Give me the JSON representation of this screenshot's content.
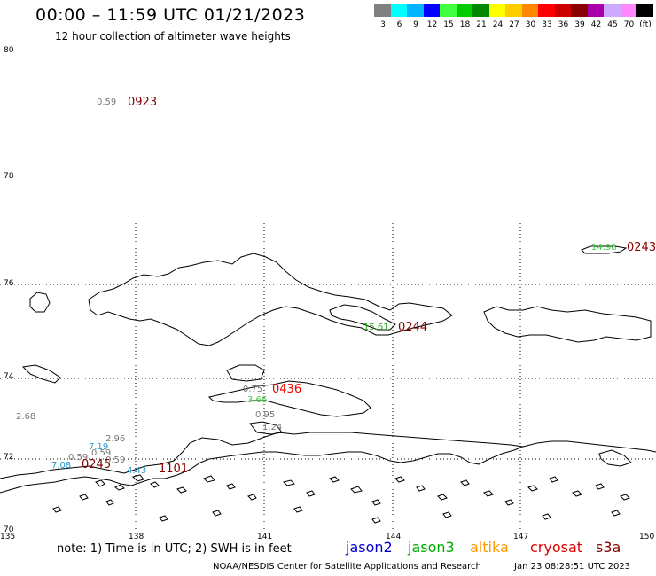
{
  "header": {
    "title": "00:00 – 11:59 UTC 01/21/2023",
    "subtitle": "12 hour collection of altimeter wave heights"
  },
  "colorbar": {
    "colors": [
      "#808080",
      "#00ffff",
      "#00b4ff",
      "#0000ff",
      "#40ff40",
      "#00cc00",
      "#008800",
      "#ffff00",
      "#ffcc00",
      "#ff8800",
      "#ff0000",
      "#cc0000",
      "#880000",
      "#aa00aa",
      "#ccaaff",
      "#ff88ff",
      "#000000"
    ],
    "labels": [
      "3",
      "6",
      "9",
      "12",
      "15",
      "18",
      "21",
      "24",
      "27",
      "30",
      "33",
      "36",
      "39",
      "42",
      "45",
      "70",
      "(ft)"
    ]
  },
  "axes": {
    "lat_labels": [
      "80",
      "78",
      "76",
      "74",
      "72",
      "70"
    ],
    "lon_labels": [
      "135",
      "138",
      "141",
      "144",
      "147",
      "150"
    ]
  },
  "observations": [
    {
      "value": "0.59",
      "color": "#777777"
    },
    {
      "value": "14.98",
      "color": "#44cc44"
    },
    {
      "value": "15.61",
      "color": "#22aa22"
    },
    {
      "value": "0.75",
      "color": "#777777"
    },
    {
      "value": "3.66",
      "color": "#44cc44"
    },
    {
      "value": "0.95",
      "color": "#777777"
    },
    {
      "value": "1.24",
      "color": "#777777"
    },
    {
      "value": "2.68",
      "color": "#777777"
    },
    {
      "value": "2.96",
      "color": "#777777"
    },
    {
      "value": "7.19",
      "color": "#2299cc"
    },
    {
      "value": "0.59",
      "color": "#777777"
    },
    {
      "value": "0.59",
      "color": "#777777"
    },
    {
      "value": "0.59",
      "color": "#777777"
    },
    {
      "value": "7.08",
      "color": "#2299cc"
    },
    {
      "value": "4.43",
      "color": "#2299cc"
    }
  ],
  "pass_times": [
    {
      "time": "0923",
      "color": "#880000"
    },
    {
      "time": "0243",
      "color": "#880000"
    },
    {
      "time": "0244",
      "color": "#880000"
    },
    {
      "time": "0436",
      "color": "#ee0000"
    },
    {
      "time": "0245",
      "color": "#880000"
    },
    {
      "time": "1101",
      "color": "#880000"
    }
  ],
  "footer": {
    "note": "note: 1) Time is in UTC; 2) SWH is in feet",
    "legend": [
      {
        "name": "jason2",
        "color": "#0000cc"
      },
      {
        "name": "jason3",
        "color": "#00aa00"
      },
      {
        "name": "altika",
        "color": "#ff9900"
      },
      {
        "name": "cryosat",
        "color": "#dd0000"
      },
      {
        "name": "s3a",
        "color": "#880000"
      }
    ],
    "credit": "NOAA/NESDIS Center for Satellite Applications and Research",
    "timestamp": "Jan 23 08:28:51 UTC 2023"
  }
}
